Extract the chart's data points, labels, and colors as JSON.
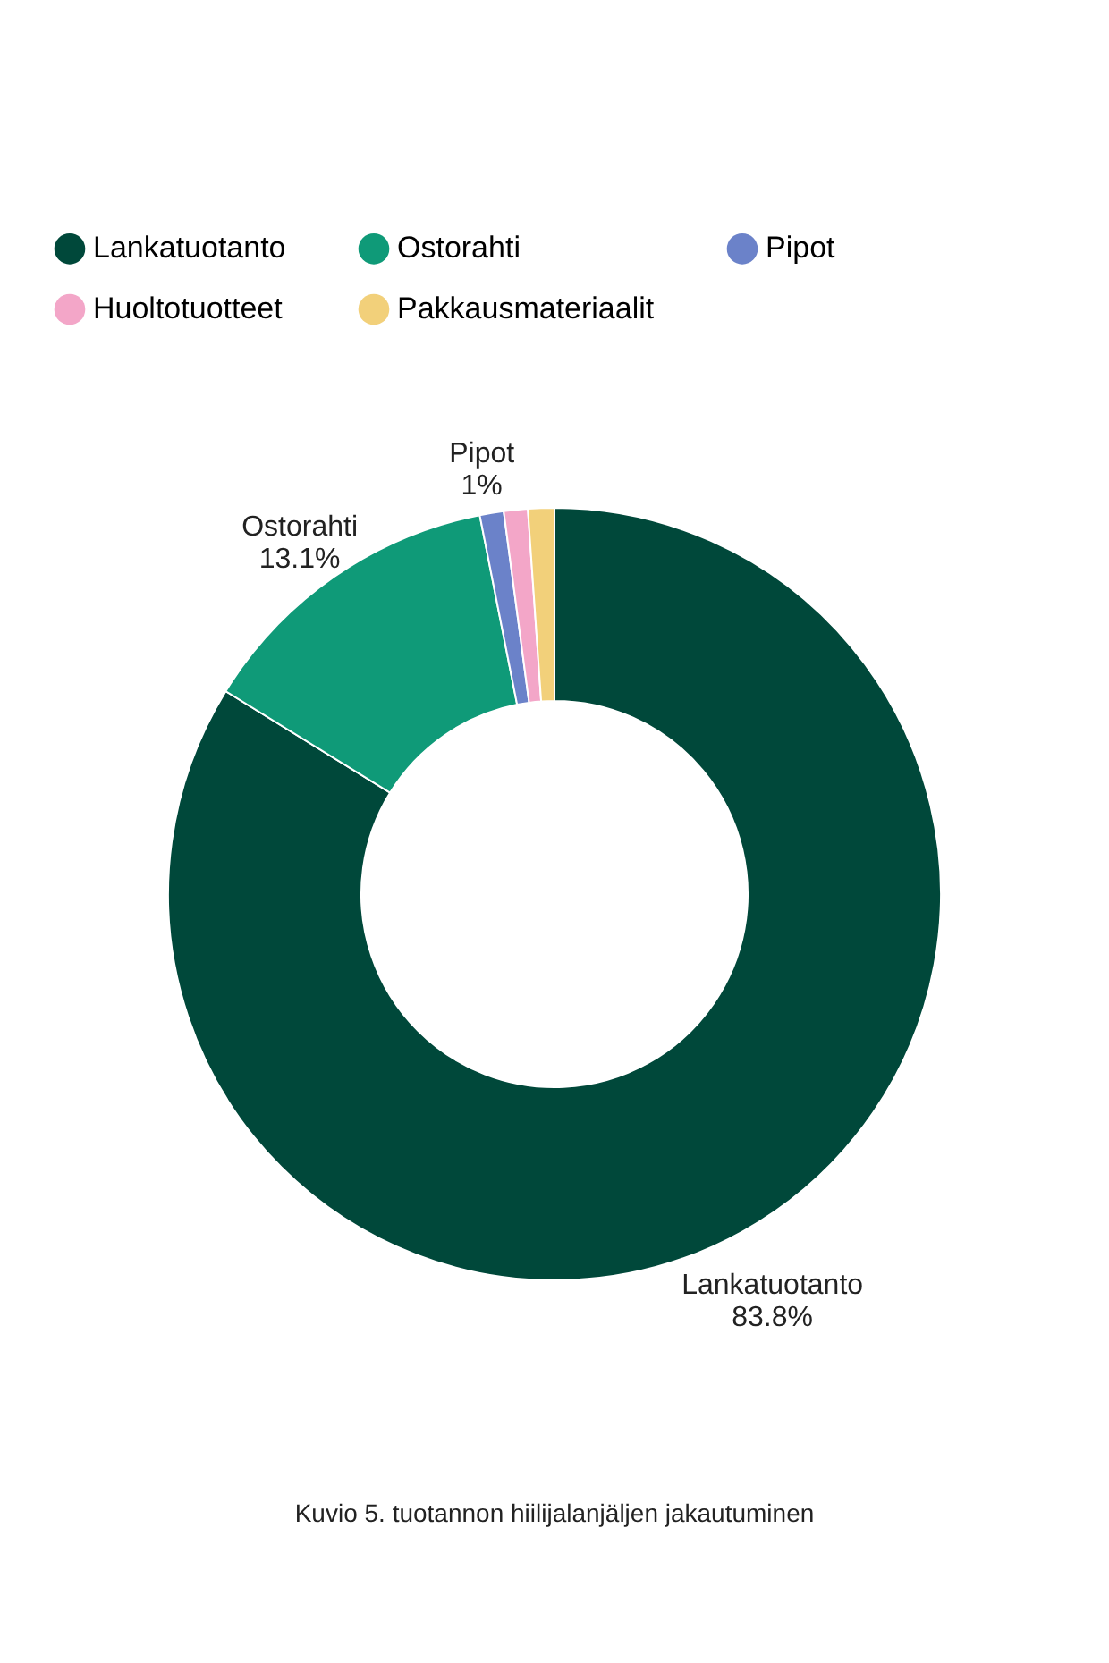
{
  "chart_data": {
    "type": "donut",
    "categories": [
      "Lankatuotanto",
      "Ostorahti",
      "Pipot",
      "Huoltotuotteet",
      "Pakkausmateriaalit"
    ],
    "values": [
      83.8,
      13.1,
      1,
      1,
      1.1
    ],
    "colors": [
      "#00483a",
      "#0f9a78",
      "#6b82c9",
      "#f3a6c8",
      "#f2d07a"
    ],
    "value_labels": [
      "83.8%",
      "13.1%",
      "1%",
      null,
      null
    ],
    "legend": "top",
    "annotations": [
      "Kuvio 5. tuotannon hiilijalanjäljen jakautuminen"
    ]
  }
}
